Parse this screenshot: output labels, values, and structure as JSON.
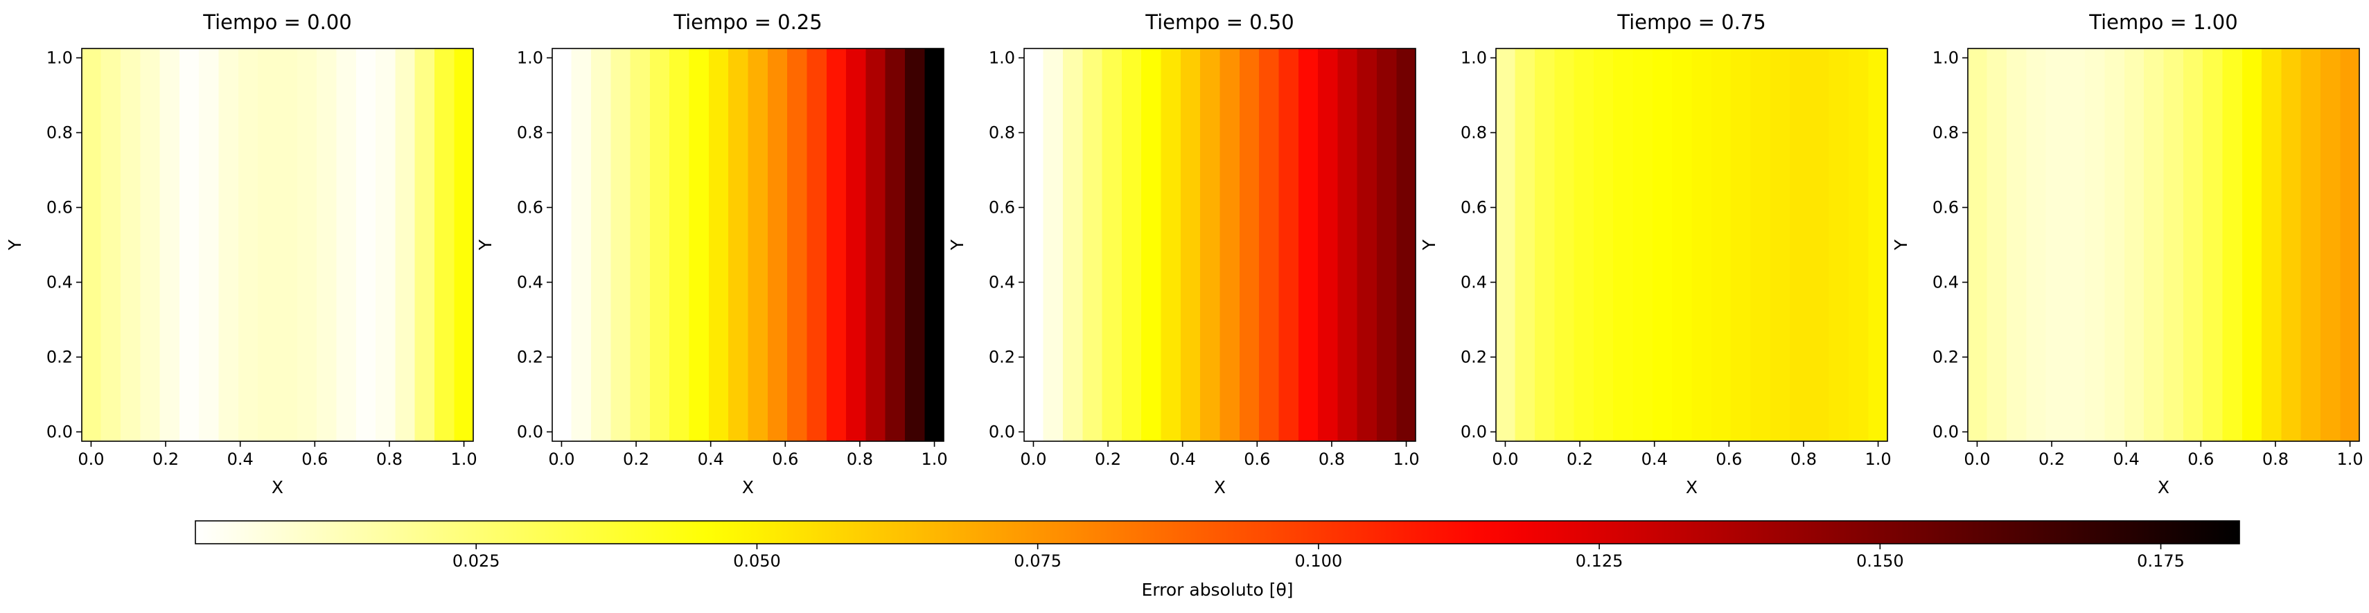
{
  "chart_data": {
    "type": "heatmap",
    "colormap": "hot_r",
    "colorbar": {
      "label": "Error absoluto [θ]",
      "min": 0.0,
      "max": 0.182,
      "ticks": [
        0.025,
        0.05,
        0.075,
        0.1,
        0.125,
        0.15,
        0.175
      ],
      "tick_labels": [
        "0.025",
        "0.050",
        "0.075",
        "0.100",
        "0.125",
        "0.150",
        "0.175"
      ],
      "placement": "bottom"
    },
    "panels": [
      {
        "title": "Tiempo = 0.00",
        "xlabel": "X",
        "ylabel": "Y",
        "xlim": [
          -0.025,
          1.025
        ],
        "ylim": [
          -0.025,
          1.025
        ],
        "x_centers": [
          0.0,
          0.0526,
          0.1053,
          0.1579,
          0.2105,
          0.2632,
          0.3158,
          0.3684,
          0.4211,
          0.4737,
          0.5263,
          0.5789,
          0.6316,
          0.6842,
          0.7368,
          0.7895,
          0.8421,
          0.8947,
          0.9474,
          1.0
        ],
        "error_by_x": [
          0.02,
          0.016,
          0.012,
          0.009,
          0.005,
          0.001,
          0.003,
          0.007,
          0.009,
          0.01,
          0.01,
          0.009,
          0.007,
          0.004,
          0.001,
          0.003,
          0.01,
          0.022,
          0.036,
          0.045
        ]
      },
      {
        "title": "Tiempo = 0.25",
        "xlabel": "X",
        "ylabel": "Y",
        "xlim": [
          -0.025,
          1.025
        ],
        "ylim": [
          -0.025,
          1.025
        ],
        "x_centers": [
          0.0,
          0.0526,
          0.1053,
          0.1579,
          0.2105,
          0.2632,
          0.3158,
          0.3684,
          0.4211,
          0.4737,
          0.5263,
          0.5789,
          0.6316,
          0.6842,
          0.7368,
          0.7895,
          0.8421,
          0.8947,
          0.9474,
          1.0
        ],
        "error_by_x": [
          0.0,
          0.004,
          0.01,
          0.017,
          0.024,
          0.031,
          0.038,
          0.045,
          0.052,
          0.06,
          0.068,
          0.077,
          0.087,
          0.098,
          0.11,
          0.123,
          0.137,
          0.151,
          0.166,
          0.182
        ]
      },
      {
        "title": "Tiempo = 0.50",
        "xlabel": "X",
        "ylabel": "Y",
        "xlim": [
          -0.025,
          1.025
        ],
        "ylim": [
          -0.025,
          1.025
        ],
        "x_centers": [
          0.0,
          0.0526,
          0.1053,
          0.1579,
          0.2105,
          0.2632,
          0.3158,
          0.3684,
          0.4211,
          0.4737,
          0.5263,
          0.5789,
          0.6316,
          0.6842,
          0.7368,
          0.7895,
          0.8421,
          0.8947,
          0.9474,
          1.0
        ],
        "error_by_x": [
          0.0,
          0.006,
          0.015,
          0.024,
          0.032,
          0.039,
          0.046,
          0.053,
          0.06,
          0.068,
          0.076,
          0.085,
          0.094,
          0.104,
          0.113,
          0.122,
          0.13,
          0.138,
          0.145,
          0.152
        ]
      },
      {
        "title": "Tiempo = 0.75",
        "xlabel": "X",
        "ylabel": "Y",
        "xlim": [
          -0.025,
          1.025
        ],
        "ylim": [
          -0.025,
          1.025
        ],
        "x_centers": [
          0.0,
          0.0526,
          0.1053,
          0.1579,
          0.2105,
          0.2632,
          0.3158,
          0.3684,
          0.4211,
          0.4737,
          0.5263,
          0.5789,
          0.6316,
          0.6842,
          0.7368,
          0.7895,
          0.8421,
          0.8947,
          0.9474,
          1.0
        ],
        "error_by_x": [
          0.018,
          0.027,
          0.033,
          0.037,
          0.04,
          0.042,
          0.044,
          0.045,
          0.046,
          0.047,
          0.048,
          0.049,
          0.05,
          0.051,
          0.052,
          0.053,
          0.053,
          0.052,
          0.051,
          0.049
        ]
      },
      {
        "title": "Tiempo = 1.00",
        "xlabel": "X",
        "ylabel": "Y",
        "xlim": [
          -0.025,
          1.025
        ],
        "ylim": [
          -0.025,
          1.025
        ],
        "x_centers": [
          0.0,
          0.0526,
          0.1053,
          0.1579,
          0.2105,
          0.2632,
          0.3158,
          0.3684,
          0.4211,
          0.4737,
          0.5263,
          0.5789,
          0.6316,
          0.6842,
          0.7368,
          0.7895,
          0.8421,
          0.8947,
          0.9474,
          1.0
        ],
        "error_by_x": [
          0.017,
          0.014,
          0.011,
          0.009,
          0.008,
          0.008,
          0.009,
          0.011,
          0.014,
          0.018,
          0.022,
          0.027,
          0.033,
          0.04,
          0.047,
          0.054,
          0.06,
          0.065,
          0.069,
          0.072
        ]
      }
    ],
    "ticks": {
      "x": [
        0.0,
        0.2,
        0.4,
        0.6,
        0.8,
        1.0
      ],
      "x_labels": [
        "0.0",
        "0.2",
        "0.4",
        "0.6",
        "0.8",
        "1.0"
      ],
      "y": [
        0.0,
        0.2,
        0.4,
        0.6,
        0.8,
        1.0
      ],
      "y_labels": [
        "0.0",
        "0.2",
        "0.4",
        "0.6",
        "0.8",
        "1.0"
      ]
    }
  }
}
